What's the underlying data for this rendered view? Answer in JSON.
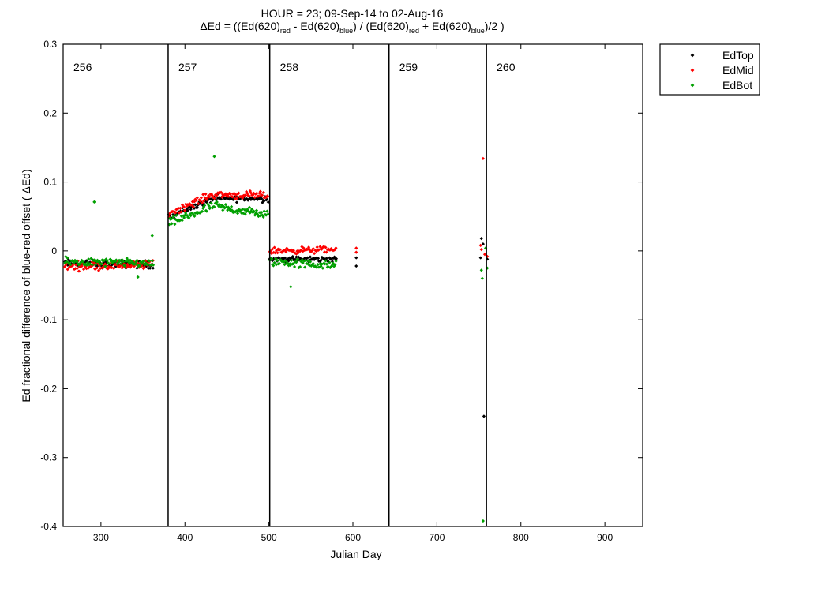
{
  "chart_data": {
    "type": "scatter",
    "title": "HOUR = 23; 09-Sep-14 to 02-Aug-16",
    "subtitle": {
      "prefix": "ΔEd = ((Ed(620)",
      "sub_red1": "red",
      "mid1": " - Ed(620)",
      "sub_blue1": "blue",
      "mid2": ") / (Ed(620)",
      "sub_red2": "red",
      "mid3": " + Ed(620)",
      "sub_blue2": "blue",
      "suffix": ")/2  )"
    },
    "xlabel": "Julian Day",
    "ylabel": "Ed fractional difference of blue-red offset ( ΔEd)",
    "xlim": [
      255,
      945
    ],
    "ylim": [
      -0.4,
      0.3
    ],
    "xticks": [
      300,
      400,
      500,
      600,
      700,
      800,
      900
    ],
    "yticks": [
      -0.4,
      -0.3,
      -0.2,
      -0.1,
      0,
      0.1,
      0.2,
      0.3
    ],
    "ytick_labels": [
      "-0.4",
      "-0.3",
      "-0.2",
      "-0.1",
      "0",
      "0.1",
      "0.2",
      "0.3"
    ],
    "grid": false,
    "legend_position": "outside-top-right",
    "segments": [
      {
        "label": "256",
        "start": 255
      },
      {
        "label": "257",
        "start": 380
      },
      {
        "label": "258",
        "start": 501
      },
      {
        "label": "259",
        "start": 643
      },
      {
        "label": "260",
        "start": 759
      }
    ],
    "dividers": [
      380,
      501,
      643,
      759
    ],
    "series": [
      {
        "name": "EdTop",
        "color": "#000000",
        "clusters": [
          {
            "x_start": 257,
            "x_end": 362,
            "y_start": -0.018,
            "y_end": -0.02,
            "spread": 0.008
          },
          {
            "x_start": 381,
            "x_end": 499,
            "y_start": 0.05,
            "y_end": 0.076,
            "spread": 0.007,
            "plateau": 0.076
          },
          {
            "x_start": 501,
            "x_end": 580,
            "y_start": -0.012,
            "y_end": -0.012,
            "spread": 0.006
          }
        ],
        "points": [
          [
            604,
            -0.01
          ],
          [
            604,
            -0.022
          ],
          [
            752,
            -0.01
          ],
          [
            753,
            0.018
          ],
          [
            755,
            0.01
          ],
          [
            756,
            -0.24
          ],
          [
            760,
            -0.012
          ]
        ]
      },
      {
        "name": "EdMid",
        "color": "#ff0000",
        "clusters": [
          {
            "x_start": 257,
            "x_end": 362,
            "y_start": -0.022,
            "y_end": -0.02,
            "spread": 0.009
          },
          {
            "x_start": 381,
            "x_end": 499,
            "y_start": 0.055,
            "y_end": 0.08,
            "spread": 0.008,
            "plateau": 0.082
          },
          {
            "x_start": 501,
            "x_end": 580,
            "y_start": 0.0,
            "y_end": 0.002,
            "spread": 0.007
          }
        ],
        "points": [
          [
            604,
            0.004
          ],
          [
            604,
            -0.002
          ],
          [
            752,
            0.008
          ],
          [
            753,
            0.002
          ],
          [
            755,
            0.134
          ],
          [
            757,
            -0.005
          ],
          [
            760,
            -0.008
          ]
        ]
      },
      {
        "name": "EdBot",
        "color": "#00a000",
        "clusters": [
          {
            "x_start": 257,
            "x_end": 362,
            "y_start": -0.016,
            "y_end": -0.018,
            "spread": 0.009
          },
          {
            "x_start": 381,
            "x_end": 499,
            "y_start": 0.04,
            "y_end": 0.052,
            "spread": 0.01,
            "plateau": 0.065
          },
          {
            "x_start": 501,
            "x_end": 580,
            "y_start": -0.015,
            "y_end": -0.022,
            "spread": 0.01
          }
        ],
        "points": [
          [
            292,
            0.071
          ],
          [
            361,
            0.022
          ],
          [
            344,
            -0.038
          ],
          [
            526,
            -0.052
          ],
          [
            435,
            0.137
          ],
          [
            753,
            -0.028
          ],
          [
            754,
            -0.04
          ],
          [
            755,
            -0.392
          ],
          [
            760,
            -0.025
          ],
          [
            758,
            0.004
          ]
        ]
      }
    ]
  }
}
